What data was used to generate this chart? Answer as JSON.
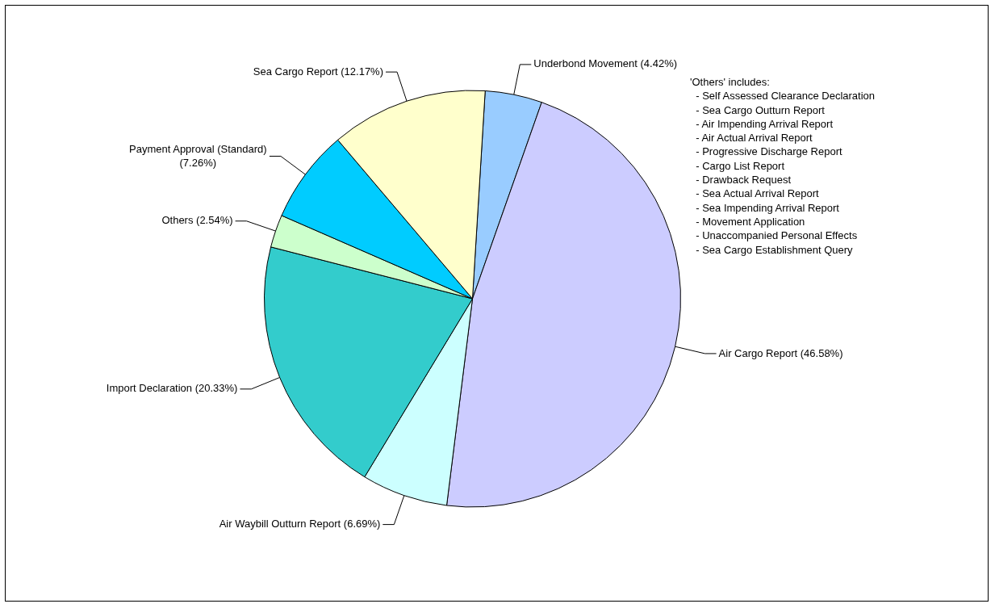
{
  "chart_data": {
    "type": "pie",
    "categories": [
      "Underbond Movement",
      "Air Cargo Report",
      "Air Waybill Outturn Report",
      "Import Declaration",
      "Others",
      "Payment Approval (Standard)",
      "Sea Cargo Report"
    ],
    "values": [
      4.42,
      46.58,
      6.69,
      20.33,
      2.54,
      7.26,
      12.17
    ],
    "value_labels": [
      "(4.42%)",
      "(46.58%)",
      "(6.69%)",
      "(20.33%)",
      "(2.54%)",
      "(7.26%)",
      "(12.17%)"
    ],
    "colors": [
      "#99ccff",
      "#ccccff",
      "#ccffff",
      "#33cccc",
      "#ccffcc",
      "#00ccff",
      "#ffffcc"
    ],
    "legend": false,
    "annotations": [
      "'Others' includes:",
      "  - Self Assessed Clearance Declaration",
      "  - Sea Cargo Outturn Report",
      "  - Air Impending Arrival Report",
      "  - Air Actual Arrival Report",
      "  - Progressive Discharge Report",
      "  - Cargo List Report",
      "  - Drawback Request",
      "  - Sea Actual Arrival Report",
      "  - Sea Impending Arrival Report",
      "  - Movement Application",
      "  - Unaccompanied Personal Effects",
      "  - Sea Cargo Establishment Query"
    ]
  }
}
